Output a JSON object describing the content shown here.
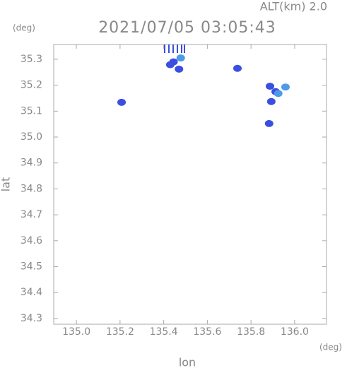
{
  "chart_data": {
    "type": "scatter",
    "title": "2021/07/05 03:05:43",
    "altitude_label": "ALT(km)  2.0",
    "x_label": "lon",
    "y_label": "lat",
    "x_unit": "(deg)",
    "y_unit": "(deg)",
    "xlim": [
      134.896,
      136.146
    ],
    "ylim": [
      34.278,
      35.357
    ],
    "xticks": [
      {
        "value": 135.0,
        "label": "135.0"
      },
      135.2,
      135.4,
      135.6,
      135.8,
      {
        "value": 136.0,
        "label": "136.0"
      }
    ],
    "yticks": [
      34.3,
      34.4,
      34.5,
      34.6,
      34.7,
      34.8,
      34.9,
      {
        "value": 35.0,
        "label": "35.0"
      },
      35.1,
      35.2,
      35.3
    ],
    "series": [
      {
        "color": "#3a4fe0",
        "x": [
          135.207,
          135.43,
          135.445,
          135.47,
          135.738,
          135.887,
          135.893,
          135.883,
          135.913
        ],
        "values": [
          35.134,
          35.279,
          35.29,
          35.262,
          35.265,
          35.196,
          35.137,
          35.052,
          35.175
        ]
      },
      {
        "color": "#4d9be8",
        "x": [
          135.958,
          135.925,
          135.478
        ],
        "values": [
          35.193,
          35.168,
          35.305
        ]
      }
    ]
  }
}
